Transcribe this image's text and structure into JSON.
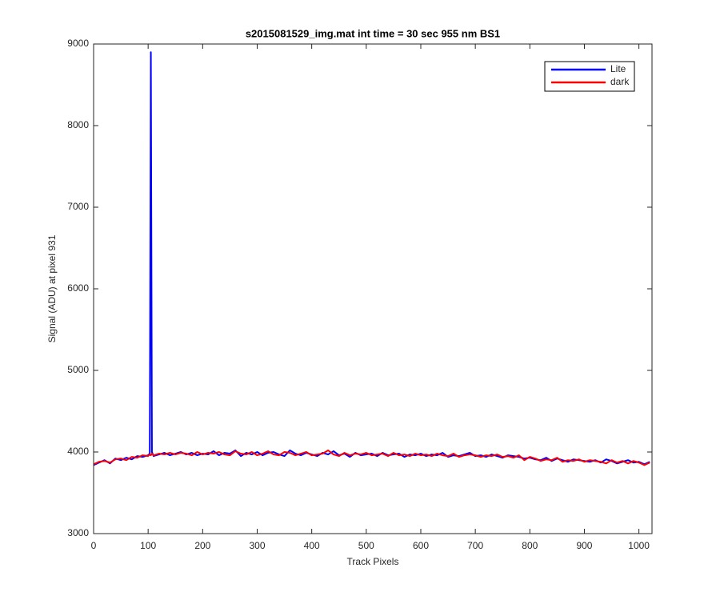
{
  "chart_data": {
    "type": "line",
    "title": "s2015081529_img.mat int time = 30 sec  955 nm BS1",
    "x_label": "Track Pixels",
    "y_label": "Signal (ADU) at pixel 931",
    "xlim": [
      0,
      1024
    ],
    "ylim": [
      3000,
      9000
    ],
    "xticks": [
      0,
      100,
      200,
      300,
      400,
      500,
      600,
      700,
      800,
      900,
      1000
    ],
    "yticks": [
      3000,
      4000,
      5000,
      6000,
      7000,
      8000,
      9000
    ],
    "grid": false,
    "legend_position": "upper right",
    "x": [
      0,
      10,
      20,
      30,
      40,
      50,
      60,
      70,
      80,
      90,
      100,
      103,
      105,
      107,
      110,
      120,
      130,
      140,
      150,
      160,
      170,
      180,
      190,
      200,
      210,
      220,
      230,
      240,
      250,
      260,
      270,
      280,
      290,
      300,
      310,
      320,
      330,
      340,
      350,
      360,
      370,
      380,
      390,
      400,
      410,
      420,
      430,
      440,
      450,
      460,
      470,
      480,
      490,
      500,
      510,
      520,
      530,
      540,
      550,
      560,
      570,
      580,
      590,
      600,
      610,
      620,
      630,
      640,
      650,
      660,
      670,
      680,
      690,
      700,
      710,
      720,
      730,
      740,
      750,
      760,
      770,
      780,
      790,
      800,
      810,
      820,
      830,
      840,
      850,
      860,
      870,
      880,
      890,
      900,
      910,
      920,
      930,
      940,
      950,
      960,
      970,
      980,
      990,
      1000,
      1010,
      1020
    ],
    "series": [
      {
        "name": "Lite",
        "color": "#0000ff",
        "values": [
          3840,
          3870,
          3900,
          3860,
          3920,
          3900,
          3930,
          3910,
          3950,
          3940,
          3960,
          3980,
          8900,
          4000,
          3950,
          3970,
          3990,
          3960,
          3980,
          4000,
          3970,
          3990,
          3960,
          3980,
          3970,
          4010,
          3960,
          3990,
          3980,
          4020,
          3950,
          3990,
          3970,
          4000,
          3960,
          3990,
          4000,
          3970,
          3950,
          4020,
          3980,
          3960,
          3990,
          3970,
          3950,
          3990,
          3970,
          4010,
          3960,
          3980,
          3940,
          3990,
          3960,
          3970,
          3980,
          3950,
          3990,
          3960,
          3970,
          3980,
          3940,
          3970,
          3960,
          3980,
          3950,
          3970,
          3960,
          3990,
          3940,
          3960,
          3950,
          3970,
          3990,
          3950,
          3960,
          3940,
          3970,
          3950,
          3930,
          3960,
          3950,
          3940,
          3920,
          3930,
          3910,
          3900,
          3930,
          3890,
          3920,
          3900,
          3880,
          3910,
          3900,
          3890,
          3880,
          3900,
          3870,
          3910,
          3890,
          3860,
          3880,
          3900,
          3870,
          3880,
          3850,
          3880
        ]
      },
      {
        "name": "dark",
        "color": "#ff0000",
        "values": [
          3850,
          3880,
          3890,
          3870,
          3910,
          3920,
          3900,
          3940,
          3930,
          3960,
          3950,
          3970,
          3960,
          3980,
          3960,
          3980,
          3970,
          3990,
          3970,
          3990,
          3980,
          3960,
          4000,
          3970,
          3990,
          3980,
          4000,
          3970,
          3960,
          4010,
          3980,
          3970,
          4000,
          3960,
          3980,
          4010,
          3970,
          3960,
          4000,
          3990,
          3960,
          3980,
          4000,
          3960,
          3970,
          3980,
          4020,
          3970,
          3950,
          3990,
          3960,
          3980,
          3970,
          3990,
          3960,
          3970,
          3980,
          3950,
          3990,
          3960,
          3970,
          3950,
          3980,
          3960,
          3970,
          3950,
          3980,
          3960,
          3950,
          3980,
          3940,
          3960,
          3970,
          3960,
          3940,
          3960,
          3950,
          3970,
          3940,
          3950,
          3930,
          3960,
          3900,
          3940,
          3920,
          3890,
          3910,
          3900,
          3930,
          3880,
          3900,
          3890,
          3910,
          3880,
          3900,
          3890,
          3880,
          3860,
          3900,
          3870,
          3890,
          3860,
          3890,
          3870,
          3840,
          3870
        ]
      }
    ]
  }
}
